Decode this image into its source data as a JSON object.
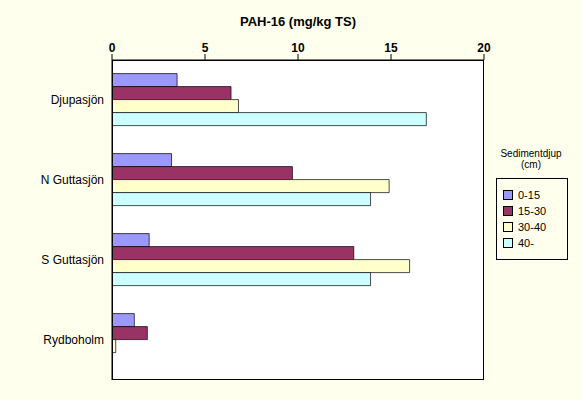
{
  "chart_data": {
    "type": "bar",
    "orientation": "horizontal",
    "title": "PAH-16 (mg/kg TS)",
    "categories": [
      "Djupasjön",
      "N Guttasjön",
      "S Guttasjön",
      "Rydboholm"
    ],
    "series": [
      {
        "name": "0-15",
        "color": "#9999ff",
        "values": [
          3.5,
          3.2,
          2.0,
          1.2
        ]
      },
      {
        "name": "15-30",
        "color": "#993366",
        "values": [
          6.4,
          9.7,
          13,
          1.9
        ]
      },
      {
        "name": "30-40",
        "color": "#ffffcc",
        "values": [
          6.8,
          14.9,
          16,
          0.2
        ]
      },
      {
        "name": "40-",
        "color": "#ccffff",
        "values": [
          16.9,
          13.9,
          13.9,
          null
        ]
      }
    ],
    "xlim": [
      0,
      20
    ],
    "xticks": [
      0,
      5,
      10,
      15,
      20
    ],
    "legend": "right",
    "legend_title": "Sedimentdjup (cm)",
    "grid": false
  }
}
